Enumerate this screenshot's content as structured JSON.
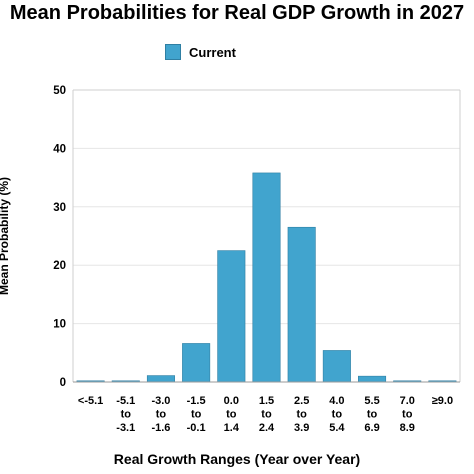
{
  "chart_data": {
    "type": "bar",
    "title": "Mean Probabilities for Real GDP Growth in 2027",
    "xlabel": "Real Growth Ranges (Year over Year)",
    "ylabel": "Mean Probability (%)",
    "ylim": [
      0,
      50
    ],
    "yticks": [
      "0",
      "10",
      "20",
      "30",
      "40",
      "50"
    ],
    "grid": true,
    "legend_position": "top",
    "categories": [
      [
        "<-5.1"
      ],
      [
        "-5.1",
        "to",
        "-3.1"
      ],
      [
        "-3.0",
        "to",
        "-1.6"
      ],
      [
        "-1.5",
        "to",
        "-0.1"
      ],
      [
        "0.0",
        "to",
        "1.4"
      ],
      [
        "1.5",
        "to",
        "2.4"
      ],
      [
        "2.5",
        "to",
        "3.9"
      ],
      [
        "4.0",
        "to",
        "5.4"
      ],
      [
        "5.5",
        "to",
        "6.9"
      ],
      [
        "7.0",
        "to",
        "8.9"
      ],
      [
        "≥9.0"
      ]
    ],
    "series": [
      {
        "name": "Current",
        "color": "#41A4CE",
        "values": [
          0.2,
          0.1,
          1.1,
          6.6,
          22.5,
          35.8,
          26.5,
          5.4,
          1.0,
          0.2,
          0.1
        ]
      }
    ]
  }
}
